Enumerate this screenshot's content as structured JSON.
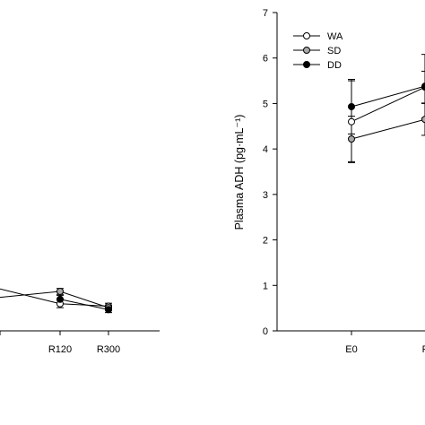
{
  "chart_data": [
    {
      "type": "line",
      "title": "",
      "xlabel": "",
      "ylabel": "",
      "categories": [
        "",
        "R120",
        "R300"
      ],
      "series": [
        {
          "name": "WA",
          "values": [
            null,
            0.55,
            0.5
          ],
          "errors": [
            null,
            0.08,
            0.06
          ]
        },
        {
          "name": "SD",
          "values": [
            null,
            0.8,
            0.47
          ],
          "errors": [
            null,
            0.06,
            0.05
          ]
        },
        {
          "name": "DD",
          "values": [
            null,
            0.64,
            0.43
          ],
          "errors": [
            null,
            0.08,
            0.06
          ]
        }
      ],
      "partial_left_segments": [
        {
          "series": "WA",
          "start_value": 0.85
        },
        {
          "series": "SD",
          "start_value": 0.68
        }
      ]
    },
    {
      "type": "line",
      "title": "",
      "xlabel": "",
      "ylabel": "Plasma ADH (pg·mL⁻¹)",
      "ylim": [
        0,
        7
      ],
      "yticks": [
        "0",
        "1",
        "2",
        "3",
        "4",
        "5",
        "6",
        "7"
      ],
      "categories": [
        "E0",
        "F"
      ],
      "legend_position": "top-left",
      "series": [
        {
          "name": "WA",
          "values": [
            4.6,
            5.36
          ],
          "errors": [
            0.9,
            0.35
          ],
          "marker": "open-circle"
        },
        {
          "name": "SD",
          "values": [
            4.22,
            4.65
          ],
          "errors": [
            0.5,
            0.35
          ],
          "marker": "gray-circle"
        },
        {
          "name": "DD",
          "values": [
            4.93,
            5.38
          ],
          "errors": [
            0.6,
            0.7
          ],
          "marker": "filled-circle"
        }
      ]
    }
  ],
  "colors": {
    "axis": "#000000",
    "wa_fill": "#ffffff",
    "sd_fill": "#a9a9a9",
    "dd_fill": "#000000"
  }
}
